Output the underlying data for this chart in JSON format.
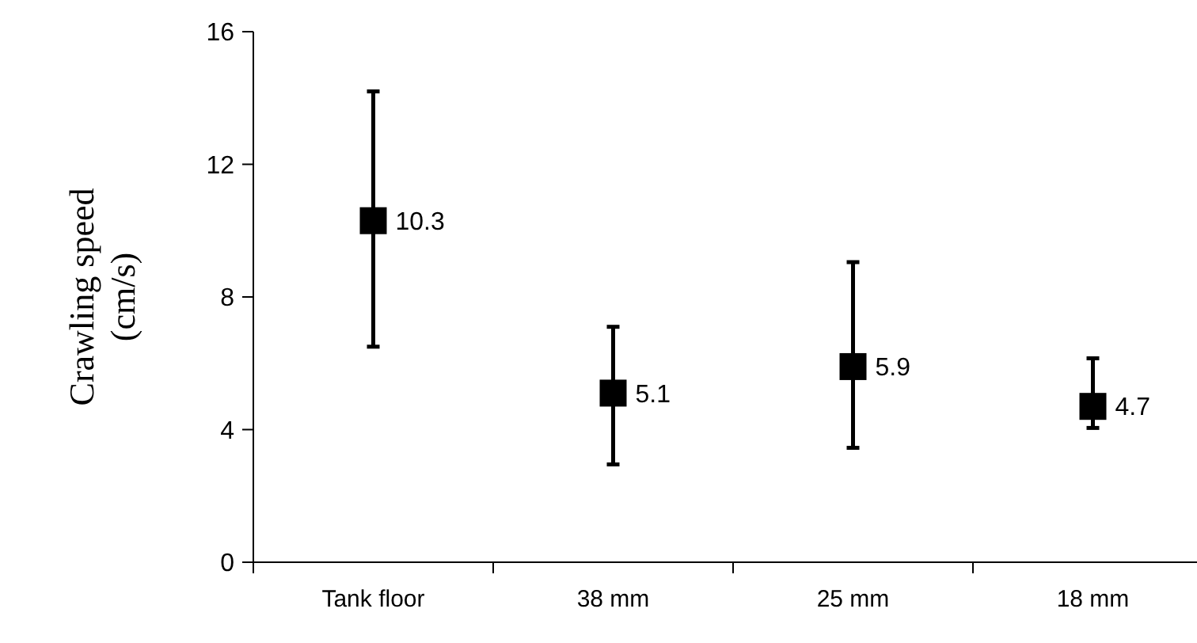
{
  "chart_data": {
    "type": "scatter",
    "ylabel": "Crawling speed\n(cm/s)",
    "categories": [
      "Tank floor",
      "38 mm",
      "25 mm",
      "18 mm"
    ],
    "values": [
      10.3,
      5.1,
      5.9,
      4.7
    ],
    "errors": [
      [
        6.5,
        14.2
      ],
      [
        2.95,
        7.1
      ],
      [
        3.45,
        9.05
      ],
      [
        4.05,
        6.15
      ]
    ],
    "color": "#000000",
    "marker": "square",
    "data_labels": true,
    "ylim": [
      0,
      16
    ],
    "yticks": [
      0,
      4,
      8,
      12,
      16
    ],
    "grid": false
  }
}
